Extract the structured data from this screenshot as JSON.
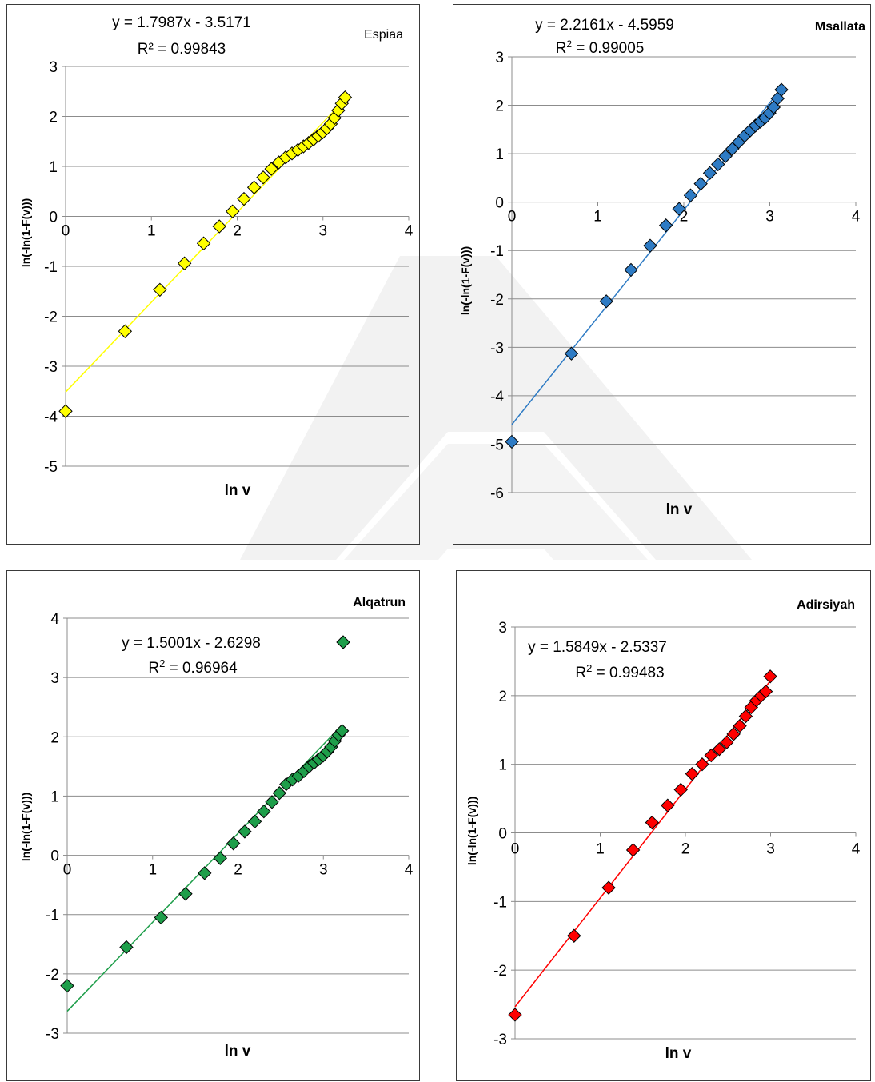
{
  "chart_data": [
    {
      "type": "scatter",
      "title": "Espiaa",
      "title_bold": false,
      "xlabel": "ln v",
      "ylabel": "ln(-ln(1-F(v)))",
      "xlim": [
        0,
        4
      ],
      "ylim": [
        -5,
        3
      ],
      "xticks": [
        0,
        1,
        2,
        3,
        4
      ],
      "yticks": [
        -5,
        -4,
        -3,
        -2,
        -1,
        0,
        1,
        2,
        3
      ],
      "grid": "horizontal",
      "marker_color": "#FFFF00",
      "trend_color": "#FFFF00",
      "trendline": {
        "slope": 1.7987,
        "intercept": -3.5171,
        "x_range": [
          0,
          3.3
        ]
      },
      "equation": "y = 1.7987x - 3.5171",
      "r2_prefix": "R² = ",
      "r2_value": "0.99843",
      "r2_superscript": false,
      "points": [
        [
          0,
          -3.9
        ],
        [
          0.693,
          -2.3
        ],
        [
          1.099,
          -1.47
        ],
        [
          1.386,
          -0.94
        ],
        [
          1.609,
          -0.54
        ],
        [
          1.792,
          -0.2
        ],
        [
          1.946,
          0.1
        ],
        [
          2.079,
          0.35
        ],
        [
          2.197,
          0.58
        ],
        [
          2.303,
          0.78
        ],
        [
          2.398,
          0.95
        ],
        [
          2.485,
          1.08
        ],
        [
          2.565,
          1.18
        ],
        [
          2.639,
          1.26
        ],
        [
          2.708,
          1.33
        ],
        [
          2.773,
          1.4
        ],
        [
          2.833,
          1.47
        ],
        [
          2.89,
          1.54
        ],
        [
          2.944,
          1.61
        ],
        [
          2.996,
          1.68
        ],
        [
          3.045,
          1.76
        ],
        [
          3.091,
          1.85
        ],
        [
          3.135,
          1.97
        ],
        [
          3.178,
          2.12
        ],
        [
          3.219,
          2.26
        ],
        [
          3.258,
          2.38
        ]
      ]
    },
    {
      "type": "scatter",
      "title": "Msallata",
      "title_bold": true,
      "xlabel": "ln v",
      "ylabel": "ln(-ln(1-F(v)))",
      "xlim": [
        0,
        4
      ],
      "ylim": [
        -6,
        3
      ],
      "xticks": [
        0,
        1,
        2,
        3,
        4
      ],
      "yticks": [
        -6,
        -5,
        -4,
        -3,
        -2,
        -1,
        0,
        1,
        2,
        3
      ],
      "grid": "horizontal",
      "marker_color": "#2E7BC4",
      "trend_color": "#2E7BC4",
      "trendline": {
        "slope": 2.2161,
        "intercept": -4.5959,
        "x_range": [
          0,
          3.15
        ]
      },
      "equation": "y = 2.2161x - 4.5959",
      "r2_prefix": "R",
      "r2_value": "0.99005",
      "r2_superscript": true,
      "points": [
        [
          0,
          -4.95
        ],
        [
          0.693,
          -3.13
        ],
        [
          1.099,
          -2.05
        ],
        [
          1.386,
          -1.4
        ],
        [
          1.609,
          -0.9
        ],
        [
          1.792,
          -0.48
        ],
        [
          1.946,
          -0.14
        ],
        [
          2.079,
          0.14
        ],
        [
          2.197,
          0.38
        ],
        [
          2.303,
          0.6
        ],
        [
          2.398,
          0.78
        ],
        [
          2.485,
          0.95
        ],
        [
          2.565,
          1.1
        ],
        [
          2.639,
          1.24
        ],
        [
          2.708,
          1.37
        ],
        [
          2.773,
          1.48
        ],
        [
          2.833,
          1.58
        ],
        [
          2.89,
          1.66
        ],
        [
          2.944,
          1.74
        ],
        [
          2.996,
          1.84
        ],
        [
          3.045,
          1.96
        ],
        [
          3.091,
          2.14
        ],
        [
          3.135,
          2.32
        ]
      ]
    },
    {
      "type": "scatter",
      "title": "Alqatrun",
      "title_bold": true,
      "xlabel": "ln v",
      "ylabel": "ln(-ln(1-F(v)))",
      "xlim": [
        0,
        4
      ],
      "ylim": [
        -3,
        4
      ],
      "xticks": [
        0,
        1,
        2,
        3,
        4
      ],
      "yticks": [
        -3,
        -2,
        -1,
        0,
        1,
        2,
        3,
        4
      ],
      "grid": "horizontal",
      "marker_color": "#1E9E4A",
      "trend_color": "#1E9E4A",
      "trendline": {
        "slope": 1.5001,
        "intercept": -2.6298,
        "x_range": [
          0,
          3.2
        ]
      },
      "equation": "y = 1.5001x - 2.6298",
      "r2_prefix": "R",
      "r2_value": "0.96964",
      "r2_superscript": true,
      "legend_marker": true,
      "points": [
        [
          0,
          -2.2
        ],
        [
          0.693,
          -1.55
        ],
        [
          1.099,
          -1.05
        ],
        [
          1.386,
          -0.65
        ],
        [
          1.609,
          -0.3
        ],
        [
          1.792,
          -0.05
        ],
        [
          1.946,
          0.2
        ],
        [
          2.079,
          0.4
        ],
        [
          2.197,
          0.57
        ],
        [
          2.303,
          0.74
        ],
        [
          2.398,
          0.9
        ],
        [
          2.485,
          1.05
        ],
        [
          2.565,
          1.2
        ],
        [
          2.639,
          1.28
        ],
        [
          2.708,
          1.34
        ],
        [
          2.773,
          1.42
        ],
        [
          2.833,
          1.5
        ],
        [
          2.89,
          1.56
        ],
        [
          2.944,
          1.62
        ],
        [
          2.996,
          1.68
        ],
        [
          3.045,
          1.75
        ],
        [
          3.091,
          1.83
        ],
        [
          3.135,
          1.93
        ],
        [
          3.178,
          2.03
        ],
        [
          3.219,
          2.1
        ]
      ]
    },
    {
      "type": "scatter",
      "title": "Adirsiyah",
      "title_bold": true,
      "xlabel": "ln v",
      "ylabel": "ln(-ln(1-F(v)))",
      "xlim": [
        0,
        4
      ],
      "ylim": [
        -3,
        3
      ],
      "xticks": [
        0,
        1,
        2,
        3,
        4
      ],
      "yticks": [
        -3,
        -2,
        -1,
        0,
        1,
        2,
        3
      ],
      "grid": "horizontal",
      "marker_color": "#FF0000",
      "trend_color": "#FF0000",
      "trendline": {
        "slope": 1.5849,
        "intercept": -2.5337,
        "x_range": [
          0,
          3.0
        ]
      },
      "equation": "y = 1.5849x - 2.5337",
      "r2_prefix": "R",
      "r2_value": "0.99483",
      "r2_superscript": true,
      "points": [
        [
          0,
          -2.65
        ],
        [
          0.693,
          -1.5
        ],
        [
          1.099,
          -0.8
        ],
        [
          1.386,
          -0.25
        ],
        [
          1.609,
          0.15
        ],
        [
          1.792,
          0.4
        ],
        [
          1.946,
          0.63
        ],
        [
          2.079,
          0.86
        ],
        [
          2.197,
          1.0
        ],
        [
          2.303,
          1.13
        ],
        [
          2.398,
          1.22
        ],
        [
          2.485,
          1.32
        ],
        [
          2.565,
          1.44
        ],
        [
          2.639,
          1.56
        ],
        [
          2.708,
          1.7
        ],
        [
          2.773,
          1.83
        ],
        [
          2.833,
          1.93
        ],
        [
          2.89,
          2.0
        ],
        [
          2.944,
          2.06
        ],
        [
          2.996,
          2.28
        ]
      ]
    }
  ]
}
